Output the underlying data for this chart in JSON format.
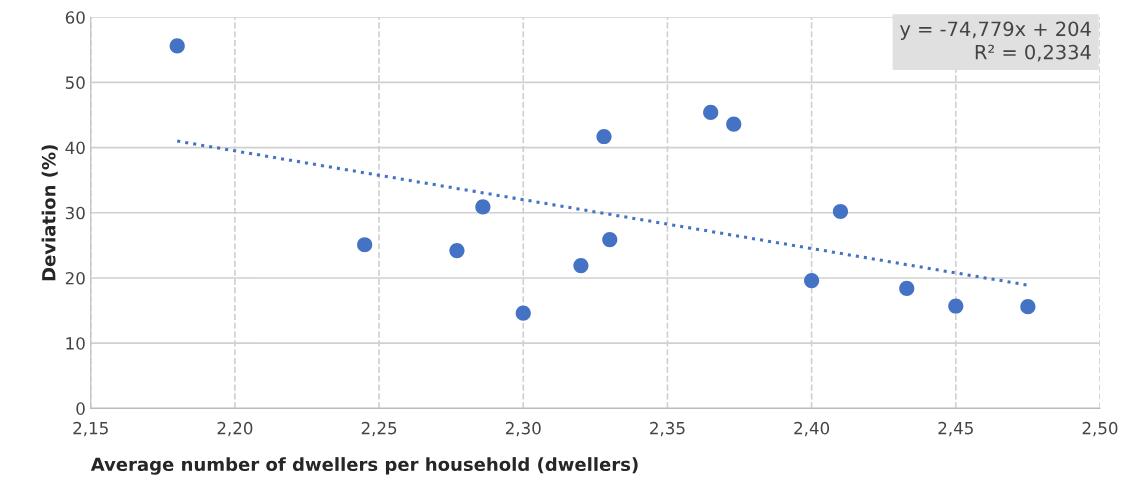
{
  "chart_data": {
    "type": "scatter",
    "xlabel": "Average number of dwellers per household (dwellers)",
    "ylabel": "Deviation (%)",
    "annotations": [
      "y = -74,779x + 204",
      "R² = 0,2334"
    ],
    "series": [
      {
        "marker": "circle",
        "color": "#4472c4",
        "x": [
          2.18,
          2.245,
          2.277,
          2.286,
          2.3,
          2.32,
          2.328,
          2.33,
          2.365,
          2.373,
          2.4,
          2.41,
          2.433,
          2.45,
          2.475
        ],
        "values": [
          55.6,
          25.1,
          24.2,
          30.9,
          14.6,
          21.9,
          41.7,
          25.9,
          45.4,
          43.6,
          19.6,
          30.2,
          18.4,
          15.7,
          15.6
        ]
      },
      {
        "type": "line",
        "line_style": "dotted",
        "color": "#4472c4",
        "x": [
          2.18,
          2.475
        ],
        "values": [
          41.0,
          18.9
        ]
      }
    ],
    "xlim": [
      2.15,
      2.5
    ],
    "xticks": [
      {
        "value": 2.15,
        "label": "2,15"
      },
      {
        "value": 2.2,
        "label": "2,20"
      },
      {
        "value": 2.25,
        "label": "2,25"
      },
      {
        "value": 2.3,
        "label": "2,30"
      },
      {
        "value": 2.35,
        "label": "2,35"
      },
      {
        "value": 2.4,
        "label": "2,40"
      },
      {
        "value": 2.45,
        "label": "2,45"
      },
      {
        "value": 2.5,
        "label": "2,50"
      }
    ],
    "ylim": [
      0,
      60
    ],
    "yticks": [
      0,
      10,
      20,
      30,
      40,
      50,
      60
    ],
    "grid": true,
    "legend": false
  }
}
